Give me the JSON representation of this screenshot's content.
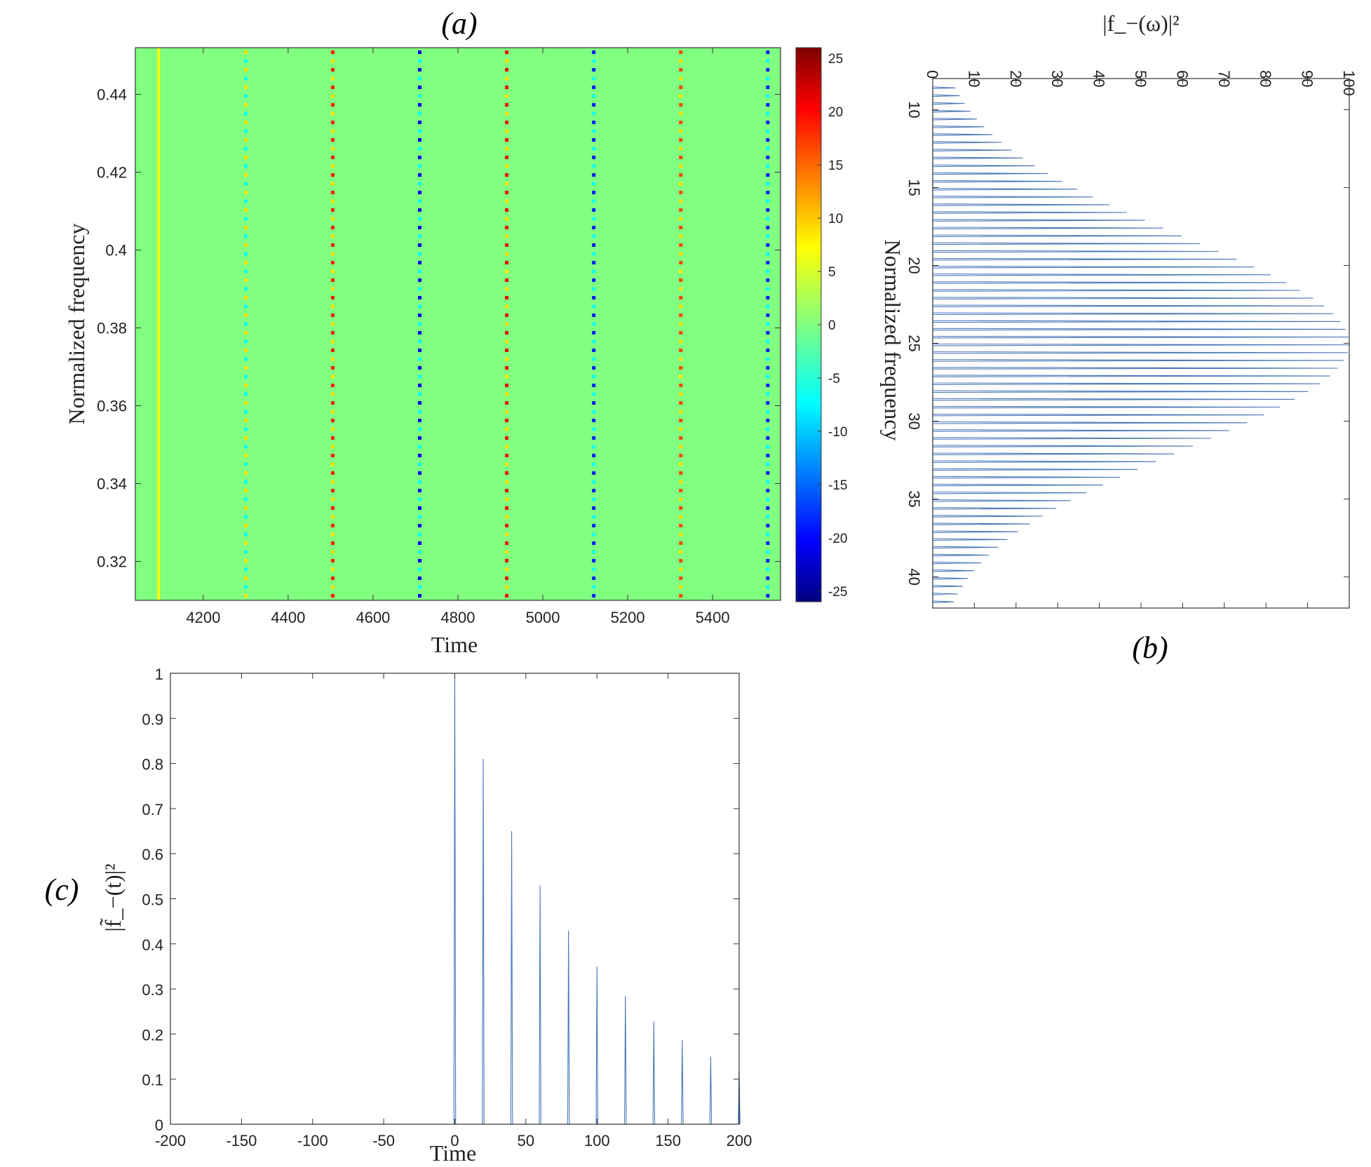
{
  "chart_data": [
    {
      "type": "heatmap",
      "panel_label": "(a)",
      "xlabel": "Time",
      "ylabel": "Normalized frequency",
      "xlim": [
        4040,
        5560
      ],
      "ylim": [
        0.31,
        0.452
      ],
      "xticks": [
        "4200",
        "4400",
        "4600",
        "4800",
        "5000",
        "5200",
        "5400"
      ],
      "xtick_values": [
        4200,
        4400,
        4600,
        4800,
        5000,
        5200,
        5400
      ],
      "yticks": [
        "0.32",
        "0.34",
        "0.36",
        "0.38",
        "0.4",
        "0.42",
        "0.44"
      ],
      "ytick_values": [
        0.32,
        0.34,
        0.36,
        0.38,
        0.4,
        0.42,
        0.44
      ],
      "background_value": 0,
      "colormap": "jet",
      "clim": [
        -26,
        26
      ],
      "colorbar_ticks": [
        "25",
        "20",
        "15",
        "10",
        "5",
        "0",
        "-5",
        "-10",
        "-15",
        "-20",
        "-25"
      ],
      "colorbar_tick_values": [
        25,
        20,
        15,
        10,
        5,
        0,
        -5,
        -10,
        -15,
        -20,
        -25
      ],
      "stripes": [
        {
          "time": 4095,
          "style": "solid",
          "value": 6
        },
        {
          "time": 4300,
          "style": "dotted",
          "value": 8,
          "alt_value": -6
        },
        {
          "time": 4505,
          "style": "dotted",
          "value": 18,
          "alt_value": 8
        },
        {
          "time": 4710,
          "style": "dotted",
          "value": -20,
          "alt_value": -6
        },
        {
          "time": 4915,
          "style": "dotted",
          "value": 20,
          "alt_value": 8
        },
        {
          "time": 5120,
          "style": "dotted",
          "value": -18,
          "alt_value": -6
        },
        {
          "time": 5325,
          "style": "dotted",
          "value": 16,
          "alt_value": 8
        },
        {
          "time": 5530,
          "style": "dotted",
          "value": -18,
          "alt_value": -6
        }
      ]
    },
    {
      "type": "line",
      "panel_label": "(b)",
      "orientation": "rotated",
      "xlabel": "Normalized frequency",
      "ylabel": "|f_−(ω)|²",
      "xlim": [
        8,
        42
      ],
      "ylim": [
        0,
        100
      ],
      "xticks": [
        "10",
        "15",
        "20",
        "25",
        "30",
        "35",
        "40"
      ],
      "xtick_values": [
        10,
        15,
        20,
        25,
        30,
        35,
        40
      ],
      "yticks": [
        "0",
        "10",
        "20",
        "30",
        "40",
        "50",
        "60",
        "70",
        "80",
        "90",
        "100"
      ],
      "ytick_values": [
        0,
        10,
        20,
        30,
        40,
        50,
        60,
        70,
        80,
        90,
        100
      ],
      "comb": {
        "start": 8.6,
        "end": 41.6,
        "spacing": 0.5,
        "center": 25,
        "sigma": 6.8,
        "peak": 100
      },
      "series_color": "#4a78b8"
    },
    {
      "type": "line",
      "panel_label": "(c)",
      "xlabel": "Time",
      "ylabel": "|f̃_−(t)|²",
      "xlim": [
        -200,
        200
      ],
      "ylim": [
        0,
        1
      ],
      "xticks": [
        "-200",
        "-150",
        "-100",
        "-50",
        "0",
        "50",
        "100",
        "150",
        "200"
      ],
      "xtick_values": [
        -200,
        -150,
        -100,
        -50,
        0,
        50,
        100,
        150,
        200
      ],
      "yticks": [
        "0",
        "0.1",
        "0.2",
        "0.3",
        "0.4",
        "0.5",
        "0.6",
        "0.7",
        "0.8",
        "0.9",
        "1"
      ],
      "ytick_values": [
        0,
        0.1,
        0.2,
        0.3,
        0.4,
        0.5,
        0.6,
        0.7,
        0.8,
        0.9,
        1
      ],
      "pulses": [
        {
          "x": 0,
          "y": 1.0
        },
        {
          "x": 20,
          "y": 0.81
        },
        {
          "x": 40,
          "y": 0.65
        },
        {
          "x": 60,
          "y": 0.53
        },
        {
          "x": 80,
          "y": 0.43
        },
        {
          "x": 100,
          "y": 0.35
        },
        {
          "x": 120,
          "y": 0.285
        },
        {
          "x": 140,
          "y": 0.228
        },
        {
          "x": 160,
          "y": 0.187
        },
        {
          "x": 180,
          "y": 0.15
        },
        {
          "x": 200,
          "y": 0.12
        }
      ],
      "series_color": "#4a78b8"
    }
  ]
}
